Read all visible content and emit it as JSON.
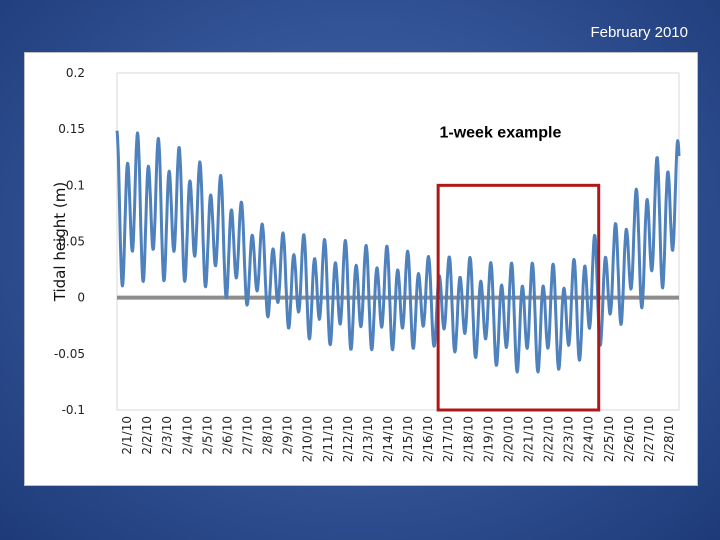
{
  "slide": {
    "title": "February 2010"
  },
  "chart_data": {
    "type": "line",
    "title": "",
    "ylabel": "Tidal height (m)",
    "xlabel": "",
    "ylim": [
      -0.1,
      0.2
    ],
    "yticks": [
      "0.2",
      "0.15",
      "0.1",
      "0.05",
      "0",
      "-0.05",
      "-0.1"
    ],
    "categories": [
      "2/1/10",
      "2/2/10",
      "2/3/10",
      "2/4/10",
      "2/5/10",
      "2/6/10",
      "2/7/10",
      "2/8/10",
      "2/9/10",
      "2/10/10",
      "2/11/10",
      "2/12/10",
      "2/13/10",
      "2/14/10",
      "2/15/10",
      "2/16/10",
      "2/17/10",
      "2/18/10",
      "2/19/10",
      "2/20/10",
      "2/21/10",
      "2/22/10",
      "2/23/10",
      "2/24/10",
      "2/25/10",
      "2/26/10",
      "2/27/10",
      "2/28/10"
    ],
    "series_color": "#4f81bd",
    "zero_line_color": "#8c8c8c",
    "daily_range": [
      {
        "date": "2/1/10",
        "max": 0.155,
        "min": 0.005
      },
      {
        "date": "2/2/10",
        "max": 0.15,
        "min": 0.01
      },
      {
        "date": "2/3/10",
        "max": 0.145,
        "min": 0.01
      },
      {
        "date": "2/4/10",
        "max": 0.135,
        "min": 0.01
      },
      {
        "date": "2/5/10",
        "max": 0.12,
        "min": 0.005
      },
      {
        "date": "2/6/10",
        "max": 0.11,
        "min": -0.005
      },
      {
        "date": "2/7/10",
        "max": 0.08,
        "min": -0.01
      },
      {
        "date": "2/8/10",
        "max": 0.065,
        "min": -0.02
      },
      {
        "date": "2/9/10",
        "max": 0.06,
        "min": -0.03
      },
      {
        "date": "2/10/10",
        "max": 0.06,
        "min": -0.04
      },
      {
        "date": "2/11/10",
        "max": 0.055,
        "min": -0.045
      },
      {
        "date": "2/12/10",
        "max": 0.055,
        "min": -0.05
      },
      {
        "date": "2/13/10",
        "max": 0.05,
        "min": -0.05
      },
      {
        "date": "2/14/10",
        "max": 0.05,
        "min": -0.05
      },
      {
        "date": "2/15/10",
        "max": 0.045,
        "min": -0.05
      },
      {
        "date": "2/16/10",
        "max": 0.04,
        "min": -0.045
      },
      {
        "date": "2/17/10",
        "max": 0.04,
        "min": -0.05
      },
      {
        "date": "2/18/10",
        "max": 0.04,
        "min": -0.055
      },
      {
        "date": "2/19/10",
        "max": 0.035,
        "min": -0.06
      },
      {
        "date": "2/20/10",
        "max": 0.035,
        "min": -0.07
      },
      {
        "date": "2/21/10",
        "max": 0.035,
        "min": -0.07
      },
      {
        "date": "2/22/10",
        "max": 0.035,
        "min": -0.07
      },
      {
        "date": "2/23/10",
        "max": 0.03,
        "min": -0.065
      },
      {
        "date": "2/24/10",
        "max": 0.06,
        "min": -0.055
      },
      {
        "date": "2/25/10",
        "max": 0.06,
        "min": -0.04
      },
      {
        "date": "2/26/10",
        "max": 0.09,
        "min": -0.02
      },
      {
        "date": "2/27/10",
        "max": 0.12,
        "min": -0.01
      },
      {
        "date": "2/28/10",
        "max": 0.145,
        "min": 0.01
      }
    ],
    "highlight": {
      "label": "1-week example",
      "from": "2/17/10",
      "to": "2/24/10",
      "ymin": -0.1,
      "ymax": 0.1,
      "color": "#b01818"
    },
    "grid": false,
    "legend": "none"
  }
}
